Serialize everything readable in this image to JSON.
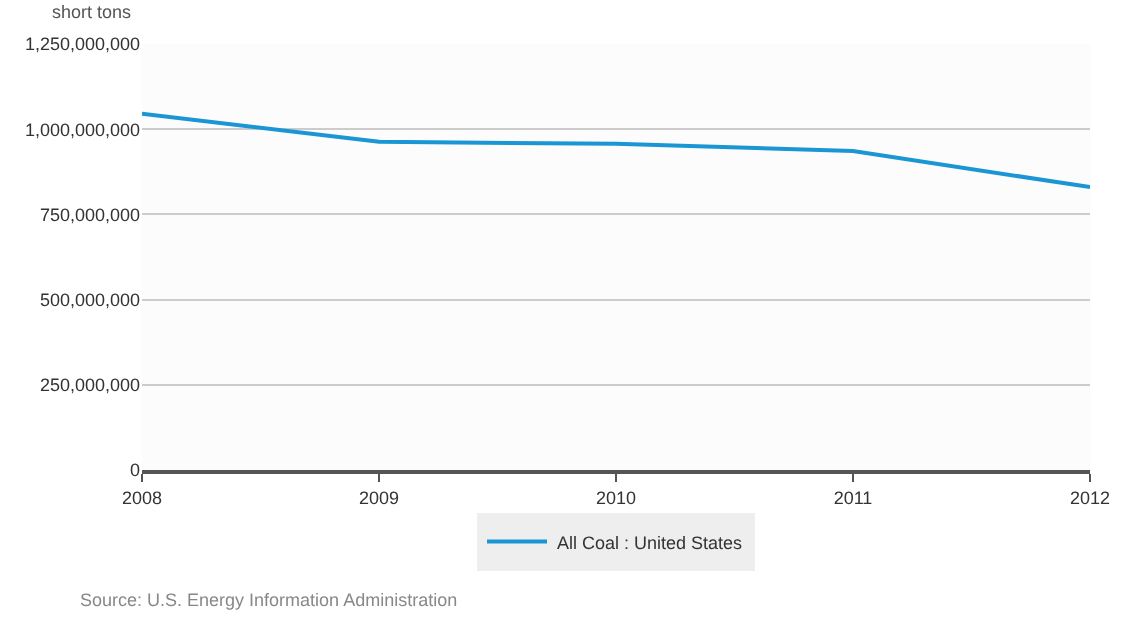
{
  "chart_data": {
    "type": "line",
    "ylabel": "short tons",
    "x": [
      2008,
      2009,
      2010,
      2011,
      2012
    ],
    "series": [
      {
        "name": "All Coal : United States",
        "color": "#1a96d4",
        "values": [
          1045000000,
          963000000,
          957000000,
          936000000,
          830000000
        ]
      }
    ],
    "xlim": [
      2008,
      2012
    ],
    "xticks": [
      2008,
      2009,
      2010,
      2011,
      2012
    ],
    "ylim": [
      0,
      1250000000
    ],
    "yticks": [
      {
        "value": 0,
        "label": "0"
      },
      {
        "value": 250000000,
        "label": "250,000,000"
      },
      {
        "value": 500000000,
        "label": "500,000,000"
      },
      {
        "value": 750000000,
        "label": "750,000,000"
      },
      {
        "value": 1000000000,
        "label": "1,000,000,000"
      },
      {
        "value": 1250000000,
        "label": "1,250,000,000"
      }
    ],
    "grid": "y",
    "legend": "bottom",
    "marker": "none",
    "line_style": "solid",
    "annotations": [
      "Source: U.S. Energy Information Administration"
    ]
  }
}
